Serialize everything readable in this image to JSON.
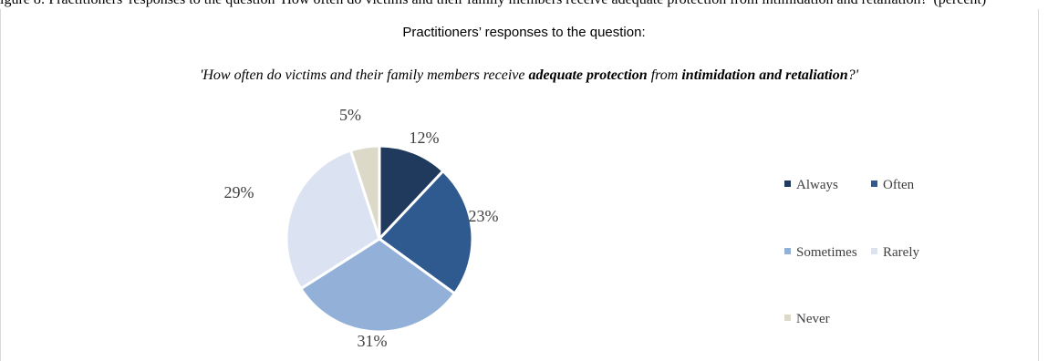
{
  "header": {
    "cutoff_text": "igure 8: Practitioners' responses to the question 'How often do victims and their family members receive adequate protection from intimidation and retaliation?' (percent)"
  },
  "chart_data": {
    "type": "pie",
    "title": "Practitioners’ responses to the question:",
    "subtitle": {
      "part1": "'How often do victims and their family members receive ",
      "bold1": "adequate protection",
      "part2": " from ",
      "bold2": "intimidation and retaliation",
      "part3": "?'"
    },
    "categories": [
      "Always",
      "Often",
      "Sometimes",
      "Rarely",
      "Never"
    ],
    "values": [
      12,
      23,
      31,
      29,
      5
    ],
    "value_suffix": "%",
    "colors": [
      "#1f3a5c",
      "#2f5a8f",
      "#93b1d8",
      "#dbe2f1",
      "#ddd9c8"
    ],
    "legend_position": "right"
  }
}
